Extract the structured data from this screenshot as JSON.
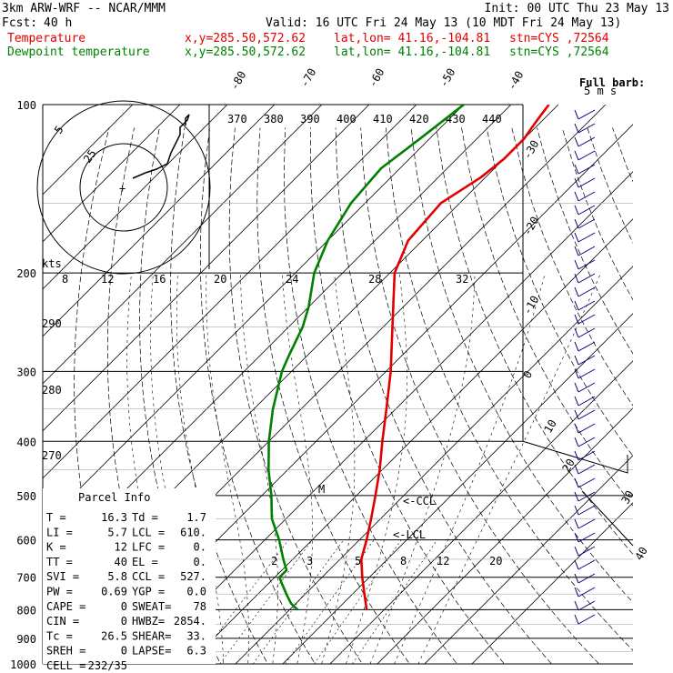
{
  "header": {
    "model": "3km ARW-WRF -- NCAR/MMM",
    "init": "Init: 00 UTC Thu 23 May 13",
    "fcst_label": "Fcst:",
    "fcst_value": "40 h",
    "valid": "Valid: 16 UTC Fri 24 May 13 (10 MDT Fri 24 May 13)",
    "temp_label": "Temperature",
    "dew_label": "Dewpoint temperature",
    "xy": "x,y=285.50,572.62",
    "latlon": "lat,lon= 41.16,-104.81",
    "stn": "stn=CYS ,72564"
  },
  "barb_legend": {
    "line1": "Full barb:",
    "line2": "5 m s"
  },
  "hodograph": {
    "ring_labels": [
      "5",
      "25"
    ],
    "units": "kts",
    "center_mark": "+"
  },
  "parcel_info": {
    "title": "Parcel Info",
    "rows": [
      [
        "T  =",
        "16.3",
        "Td =",
        "1.7"
      ],
      [
        "LI =",
        "5.7",
        "LCL =",
        "610."
      ],
      [
        "K  =",
        "12",
        "LFC =",
        "0."
      ],
      [
        "TT =",
        "40",
        "EL  =",
        "0."
      ],
      [
        "SVI =",
        "5.8",
        "CCL =",
        "527."
      ],
      [
        "PW =",
        "0.69",
        "YGP =",
        "0.0"
      ],
      [
        "CAPE =",
        "0",
        "SWEAT=",
        "78"
      ],
      [
        "CIN =",
        "0",
        "HWBZ=",
        "2854."
      ],
      [
        "Tc =",
        "26.5",
        "SHEAR=",
        "33."
      ],
      [
        "SREH =",
        "0",
        "LAPSE=",
        "6.3"
      ],
      [
        "CELL =",
        "232/35",
        "",
        ""
      ]
    ]
  },
  "level_markers": {
    "ccl": "<-CCL",
    "lcl": "<-LCL",
    "m": "M"
  },
  "chart_data": {
    "type": "line",
    "title": "",
    "xlabel": "",
    "ylabel": "",
    "pressure_ticks": [
      100,
      200,
      300,
      400,
      500,
      600,
      700,
      800,
      900,
      1000
    ],
    "temperature_isotherm_labels": [
      "-80",
      "-70",
      "-60",
      "-50",
      "-40",
      "-30",
      "-20",
      "-10",
      "0",
      "10",
      "20",
      "30",
      "40"
    ],
    "theta_labels": [
      "370",
      "380",
      "390",
      "400",
      "410",
      "420",
      "430",
      "440"
    ],
    "theta_left_labels": [
      "290",
      "280",
      "270"
    ],
    "mixing_ratio_upper_labels": [
      "8",
      "12",
      "16",
      "20",
      "24",
      "28",
      "32"
    ],
    "mixing_ratio_lower_labels": [
      "2",
      "3",
      "5",
      "8",
      "12",
      "20"
    ],
    "series": [
      {
        "name": "Temperature",
        "color": "#e00000",
        "points": [
          [
            800,
            16.3
          ],
          [
            750,
            12.5
          ],
          [
            700,
            8.5
          ],
          [
            650,
            4.5
          ],
          [
            600,
            1.5
          ],
          [
            550,
            -2
          ],
          [
            500,
            -6
          ],
          [
            450,
            -10.5
          ],
          [
            400,
            -16
          ],
          [
            350,
            -22
          ],
          [
            300,
            -29
          ],
          [
            250,
            -38
          ],
          [
            200,
            -49
          ],
          [
            175,
            -53
          ],
          [
            150,
            -54
          ],
          [
            135,
            -51
          ],
          [
            125,
            -50
          ],
          [
            115,
            -50
          ],
          [
            108,
            -51
          ],
          [
            100,
            -52
          ]
        ]
      },
      {
        "name": "Dewpoint temperature",
        "color": "#008000",
        "points": [
          [
            800,
            1.7
          ],
          [
            780,
            -1
          ],
          [
            750,
            -4
          ],
          [
            720,
            -7
          ],
          [
            700,
            -9
          ],
          [
            680,
            -9
          ],
          [
            650,
            -12
          ],
          [
            600,
            -17
          ],
          [
            550,
            -23
          ],
          [
            500,
            -28
          ],
          [
            450,
            -34
          ],
          [
            400,
            -40
          ],
          [
            350,
            -46
          ],
          [
            300,
            -52
          ],
          [
            280,
            -54
          ],
          [
            250,
            -57
          ],
          [
            230,
            -60
          ],
          [
            200,
            -66
          ],
          [
            175,
            -70
          ],
          [
            150,
            -73
          ],
          [
            130,
            -74
          ],
          [
            115,
            -72
          ],
          [
            100,
            -70
          ]
        ]
      }
    ],
    "legend": "top-left",
    "grid": true
  }
}
